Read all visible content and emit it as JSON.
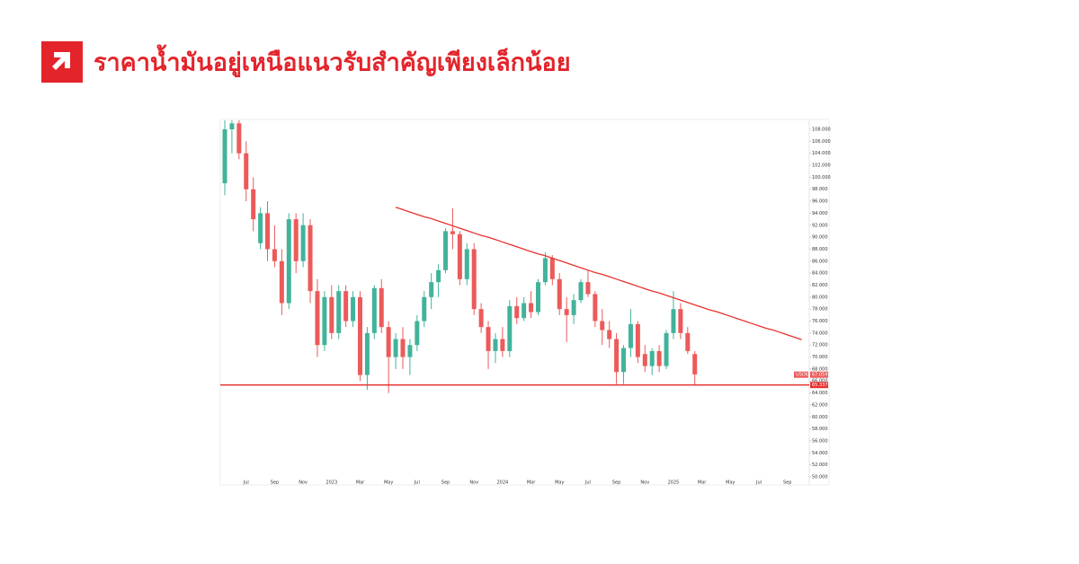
{
  "chart_data": {
    "type": "candlestick",
    "title": "ราคาน้ำมันอยู่เหนือแนวรับสำคัญเพียงเล็กน้อย",
    "symbol": "USOIL",
    "last_price": 67.059,
    "support": 65.337,
    "up_color": "#42b39b",
    "down_color": "#ec5a5a",
    "line_color": "#e8312f",
    "grid": false,
    "categories": [
      null,
      null,
      null,
      "Jul",
      null,
      null,
      null,
      "Sep",
      null,
      null,
      null,
      "Nov",
      null,
      null,
      null,
      "2023",
      null,
      null,
      null,
      "Mar",
      null,
      null,
      null,
      "May",
      null,
      null,
      null,
      "Jul",
      null,
      null,
      null,
      "Sep",
      null,
      null,
      null,
      "Nov",
      null,
      null,
      null,
      "2024",
      null,
      null,
      null,
      "Mar",
      null,
      null,
      null,
      "May",
      null,
      null,
      null,
      "Jul",
      null,
      null,
      null,
      "Sep",
      null,
      null,
      null,
      "Nov",
      null,
      null,
      null,
      "2025",
      null,
      null,
      null,
      "Mar",
      null,
      null,
      null,
      "May",
      null,
      null,
      null,
      "Jul",
      null,
      null,
      null,
      "Sep",
      null,
      null
    ],
    "ohlc": [
      [
        99,
        109.5,
        97,
        108
      ],
      [
        108,
        109.5,
        104,
        109
      ],
      [
        109,
        109.5,
        103,
        104
      ],
      [
        104,
        106,
        96,
        98
      ],
      [
        98,
        100,
        91,
        93
      ],
      [
        89,
        95,
        88,
        94
      ],
      [
        94,
        96,
        86,
        88
      ],
      [
        88,
        92,
        85,
        86
      ],
      [
        86,
        88,
        77,
        79
      ],
      [
        79,
        94,
        78,
        93
      ],
      [
        93,
        94,
        84,
        86
      ],
      [
        86,
        94,
        85,
        92
      ],
      [
        92,
        93,
        79,
        81
      ],
      [
        81,
        83,
        70,
        72
      ],
      [
        72,
        81,
        71,
        80
      ],
      [
        80,
        82,
        73,
        74
      ],
      [
        74,
        82,
        73,
        81
      ],
      [
        81,
        82,
        75,
        76
      ],
      [
        76,
        81,
        75,
        80
      ],
      [
        80,
        81,
        66,
        67
      ],
      [
        67,
        75,
        64.5,
        74
      ],
      [
        74,
        82,
        73,
        81.5
      ],
      [
        81.5,
        83,
        74,
        75
      ],
      [
        75,
        76,
        64,
        70
      ],
      [
        70,
        74,
        68,
        73
      ],
      [
        73,
        75,
        68,
        70
      ],
      [
        70,
        73,
        67,
        72
      ],
      [
        72,
        77,
        71,
        76
      ],
      [
        76,
        81,
        75,
        80
      ],
      [
        80,
        84,
        78,
        82.5
      ],
      [
        82.5,
        85.5,
        80,
        84.5
      ],
      [
        84.5,
        91.5,
        84,
        91
      ],
      [
        91,
        94.8,
        88,
        90.5
      ],
      [
        90.5,
        91,
        82,
        83
      ],
      [
        83,
        89,
        82,
        88
      ],
      [
        88,
        89,
        77,
        78
      ],
      [
        78,
        79,
        74,
        75
      ],
      [
        75,
        76,
        68,
        71
      ],
      [
        71,
        74,
        69,
        73
      ],
      [
        73,
        75,
        70,
        71
      ],
      [
        71,
        79.5,
        70,
        78.5
      ],
      [
        78.5,
        80,
        75.5,
        76.5
      ],
      [
        76.5,
        80,
        76,
        79
      ],
      [
        79,
        81,
        76.5,
        77.5
      ],
      [
        77.5,
        83,
        77,
        82.5
      ],
      [
        82.5,
        87.5,
        82,
        86.5
      ],
      [
        86.5,
        87,
        82,
        83
      ],
      [
        83,
        84,
        77,
        78
      ],
      [
        78,
        80,
        72.5,
        77
      ],
      [
        77,
        80.5,
        75.5,
        79.5
      ],
      [
        79.5,
        83,
        79,
        82.5
      ],
      [
        82.5,
        84.5,
        80,
        80.5
      ],
      [
        80.5,
        81,
        75,
        76
      ],
      [
        76,
        78,
        72,
        74.5
      ],
      [
        74.5,
        76,
        71.5,
        73
      ],
      [
        73,
        74,
        65.5,
        67.5
      ],
      [
        67.5,
        72,
        65.5,
        71.5
      ],
      [
        71.5,
        78,
        70,
        75.5
      ],
      [
        75.5,
        76,
        69,
        70
      ],
      [
        70.5,
        72,
        67.5,
        68.5
      ],
      [
        68.5,
        71.5,
        67,
        71
      ],
      [
        71,
        72,
        67.5,
        68.5
      ],
      [
        68.5,
        74.5,
        68,
        74
      ],
      [
        74,
        81,
        73,
        78
      ],
      [
        78,
        79,
        73,
        74
      ],
      [
        74,
        75,
        70.5,
        71
      ],
      [
        70.5,
        71,
        65.3,
        67.1
      ],
      null,
      null,
      null,
      null,
      null,
      null,
      null,
      null,
      null,
      null,
      null,
      null,
      null,
      null,
      null
    ],
    "series": [
      {
        "name": "Trendline",
        "color": "#e8312f",
        "values": [
          null,
          null,
          null,
          null,
          null,
          null,
          null,
          null,
          null,
          null,
          null,
          null,
          null,
          null,
          null,
          null,
          null,
          null,
          null,
          null,
          null,
          null,
          null,
          null,
          95.0,
          94.6,
          94.2,
          93.8,
          93.4,
          93.1,
          92.7,
          92.3,
          91.9,
          91.5,
          91.1,
          90.7,
          90.3,
          90.0,
          89.6,
          89.2,
          88.8,
          88.4,
          88.0,
          87.6,
          87.2,
          86.9,
          86.5,
          86.1,
          85.7,
          85.3,
          84.9,
          84.5,
          84.1,
          83.8,
          83.4,
          83.0,
          82.6,
          82.2,
          81.8,
          81.4,
          81.0,
          80.7,
          80.3,
          79.9,
          79.5,
          79.1,
          78.7,
          78.3,
          77.9,
          77.6,
          77.2,
          76.8,
          76.4,
          76.0,
          75.6,
          75.2,
          74.8,
          74.5,
          74.1,
          73.7,
          73.3,
          72.9
        ]
      }
    ],
    "ylim": [
      48.65,
      109.65
    ],
    "yticks": [
      {
        "value": 108,
        "label": "108.000"
      },
      {
        "value": 106,
        "label": "106.000"
      },
      {
        "value": 104,
        "label": "104.000"
      },
      {
        "value": 102,
        "label": "102.000"
      },
      {
        "value": 100,
        "label": "100.000"
      },
      {
        "value": 98,
        "label": "98.000"
      },
      {
        "value": 96,
        "label": "96.000"
      },
      {
        "value": 94,
        "label": "94.000"
      },
      {
        "value": 92,
        "label": "92.000"
      },
      {
        "value": 90,
        "label": "90.000"
      },
      {
        "value": 88,
        "label": "88.000"
      },
      {
        "value": 86,
        "label": "86.000"
      },
      {
        "value": 84,
        "label": "84.000"
      },
      {
        "value": 82,
        "label": "82.000"
      },
      {
        "value": 80,
        "label": "80.000"
      },
      {
        "value": 78,
        "label": "78.000"
      },
      {
        "value": 76,
        "label": "76.000"
      },
      {
        "value": 74,
        "label": "74.000"
      },
      {
        "value": 72,
        "label": "72.000"
      },
      {
        "value": 70,
        "label": "70.000"
      },
      {
        "value": 68,
        "label": "68.000"
      },
      {
        "value": 66,
        "label": "66.000"
      },
      {
        "value": 64,
        "label": "64.000"
      },
      {
        "value": 62,
        "label": "62.000"
      },
      {
        "value": 60,
        "label": "60.000"
      },
      {
        "value": 58,
        "label": "58.000"
      },
      {
        "value": 56,
        "label": "56.000"
      },
      {
        "value": 54,
        "label": "54.000"
      },
      {
        "value": 52,
        "label": "52.000"
      },
      {
        "value": 50,
        "label": "50.000"
      }
    ]
  }
}
